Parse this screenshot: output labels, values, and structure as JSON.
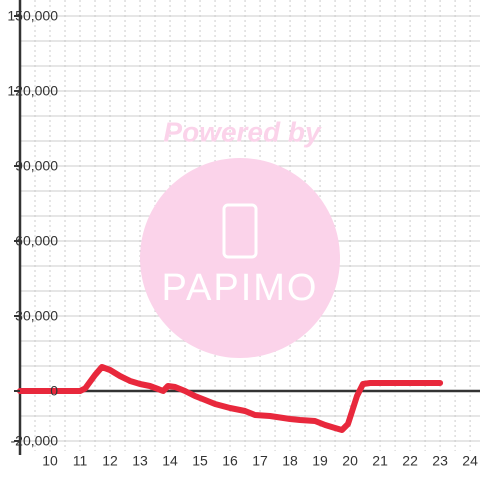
{
  "chart_data": {
    "type": "line",
    "watermark": {
      "text": "Powered by",
      "logo": "PAPIMO"
    },
    "x": [
      9,
      11.0,
      11.17,
      11.5,
      11.73,
      12,
      12.33,
      12.67,
      13,
      13.33,
      13.6,
      13.77,
      13.93,
      14.17,
      14.5,
      14.83,
      15.17,
      15.5,
      16,
      16.5,
      16.83,
      17.33,
      18,
      18.33,
      18.83,
      19.17,
      19.5,
      19.73,
      19.93,
      20.07,
      20.23,
      20.43,
      20.67,
      23
    ],
    "series": [
      {
        "color": "#e8283c",
        "values": [
          0,
          0,
          1000,
          6400,
          9600,
          8400,
          6000,
          4000,
          2800,
          2000,
          800,
          0,
          2000,
          1600,
          0,
          -2000,
          -3600,
          -5200,
          -6800,
          -8000,
          -9600,
          -10000,
          -11200,
          -11600,
          -12000,
          -13600,
          -14800,
          -15600,
          -13200,
          -8000,
          -2000,
          2800,
          3200,
          3200
        ]
      }
    ],
    "xlim": [
      9,
      24.33
    ],
    "ylim": [
      -20000,
      150000
    ],
    "xticks": [
      10,
      11,
      12,
      13,
      14,
      15,
      16,
      17,
      18,
      19,
      20,
      21,
      22,
      23,
      24
    ],
    "yticks": [
      {
        "value": -20000,
        "label": "-20,000"
      },
      0,
      {
        "value": 30000,
        "label": "30,000"
      },
      {
        "value": 60000,
        "label": "60,000"
      },
      {
        "value": 90000,
        "label": "90,000"
      },
      {
        "value": 120000,
        "label": "120,000"
      },
      {
        "value": 150000,
        "label": "150,000"
      }
    ],
    "yminorticks": [
      -10000,
      10000,
      20000,
      40000,
      50000,
      70000,
      80000,
      100000,
      110000,
      130000,
      140000
    ],
    "xminorticks": [
      9.5,
      10.5,
      11.5,
      12.5,
      13.5,
      14.5,
      15.5,
      16.5,
      17.5,
      18.5,
      19.5,
      20.5,
      21.5,
      22.5,
      23.5
    ],
    "grid": true
  }
}
